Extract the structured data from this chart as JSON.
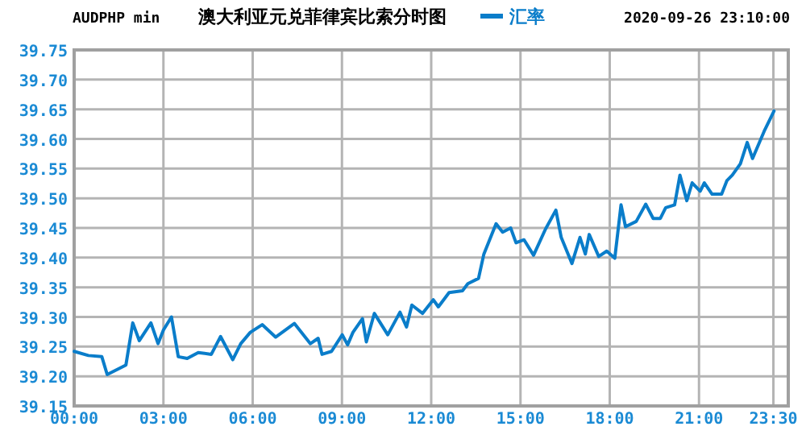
{
  "chart_data": {
    "type": "line",
    "title": "澳大利亚元兑菲律宾比索分时图",
    "annotations": [
      "AUDPHP min",
      "2020-09-26 23:10:00"
    ],
    "xlim": [
      0,
      24
    ],
    "ylim": [
      39.15,
      39.75
    ],
    "xticks": [
      {
        "value": 0,
        "label": "00:00"
      },
      {
        "value": 3,
        "label": "03:00"
      },
      {
        "value": 6,
        "label": "06:00"
      },
      {
        "value": 9,
        "label": "09:00"
      },
      {
        "value": 12,
        "label": "12:00"
      },
      {
        "value": 15,
        "label": "15:00"
      },
      {
        "value": 18,
        "label": "18:00"
      },
      {
        "value": 21,
        "label": "21:00"
      },
      {
        "value": 23.5,
        "label": "23:30"
      }
    ],
    "yticks": [
      39.15,
      {
        "value": 39.2,
        "label": "39.20"
      },
      39.25,
      {
        "value": 39.3,
        "label": "39.30"
      },
      39.35,
      {
        "value": 39.4,
        "label": "39.40"
      },
      39.45,
      {
        "value": 39.5,
        "label": "39.50"
      },
      39.55,
      {
        "value": 39.6,
        "label": "39.60"
      },
      39.65,
      {
        "value": 39.7,
        "label": "39.70"
      },
      39.75
    ],
    "grid": true,
    "legend": "top",
    "series": [
      {
        "name": "汇率",
        "color": "#0a7dca",
        "x": [
          0,
          0.48,
          0.93,
          1.11,
          1.74,
          1.97,
          2.19,
          2.58,
          2.82,
          3.0,
          3.27,
          3.5,
          3.8,
          4.17,
          4.61,
          4.92,
          5.33,
          5.6,
          5.92,
          6.32,
          6.77,
          7.4,
          7.94,
          8.2,
          8.33,
          8.65,
          9.01,
          9.19,
          9.37,
          9.69,
          9.82,
          10.09,
          10.54,
          10.95,
          11.17,
          11.35,
          11.71,
          12.07,
          12.24,
          12.6,
          13.05,
          13.23,
          13.59,
          13.77,
          14.18,
          14.4,
          14.67,
          14.85,
          15.12,
          15.44,
          15.84,
          16.19,
          16.37,
          16.73,
          17.0,
          17.18,
          17.31,
          17.63,
          17.9,
          18.17,
          18.38,
          18.53,
          18.89,
          19.21,
          19.46,
          19.7,
          19.88,
          20.18,
          20.36,
          20.59,
          20.77,
          21.04,
          21.18,
          21.44,
          21.76,
          21.94,
          22.12,
          22.39,
          22.62,
          22.8,
          23.19,
          23.52
        ],
        "values": [
          39.242,
          39.235,
          39.233,
          39.203,
          39.219,
          39.29,
          39.26,
          39.29,
          39.255,
          39.278,
          39.3,
          39.233,
          39.23,
          39.24,
          39.237,
          39.267,
          39.228,
          39.255,
          39.274,
          39.287,
          39.266,
          39.289,
          39.255,
          39.264,
          39.237,
          39.242,
          39.27,
          39.253,
          39.274,
          39.297,
          39.258,
          39.306,
          39.27,
          39.308,
          39.283,
          39.32,
          39.306,
          39.329,
          39.317,
          39.341,
          39.344,
          39.356,
          39.365,
          39.406,
          39.457,
          39.443,
          39.45,
          39.425,
          39.43,
          39.404,
          39.448,
          39.48,
          39.434,
          39.39,
          39.434,
          39.406,
          39.439,
          39.402,
          39.411,
          39.399,
          39.489,
          39.452,
          39.461,
          39.49,
          39.466,
          39.466,
          39.484,
          39.489,
          39.539,
          39.496,
          39.526,
          39.512,
          39.526,
          39.507,
          39.507,
          39.53,
          39.539,
          39.558,
          39.594,
          39.567,
          39.613,
          39.647
        ]
      }
    ]
  }
}
